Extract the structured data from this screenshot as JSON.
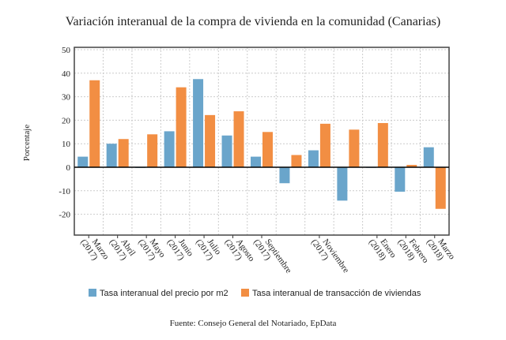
{
  "chart_data": {
    "type": "bar",
    "title": "Variación interanual de la compra de vivienda en la comunidad (Canarias)",
    "ylabel": "Porcentaje",
    "xlabel": "",
    "source": "Fuente: Consejo General del Notariado, EpData",
    "ylim": [
      -30,
      50
    ],
    "yticks": [
      -20,
      -10,
      0,
      10,
      20,
      30,
      40,
      50
    ],
    "grid": true,
    "legend": "bottom",
    "categories": [
      "Marzo (2017)",
      "Abril (2017)",
      "Mayo (2017)",
      "Junio (2017)",
      "Julio (2017)",
      "Agosto (2017)",
      "Septiembre (2017)",
      "",
      "Noviembre (2017)",
      "",
      "Enero (2018)",
      "Febrero (2018)",
      "Marzo (2018)"
    ],
    "series": [
      {
        "name": "Tasa interanual del precio por m2",
        "color": "#6aa5cb",
        "values": [
          4.5,
          10,
          -0.3,
          15.3,
          37.5,
          13.5,
          4.5,
          -6.8,
          7.2,
          -14.2,
          0,
          -10.4,
          8.5
        ]
      },
      {
        "name": "Tasa interanual de transacción de viviendas",
        "color": "#f28e43",
        "values": [
          37,
          12,
          14,
          34,
          22.2,
          23.8,
          15,
          5.2,
          18.5,
          16,
          18.8,
          1,
          -17.7
        ]
      }
    ]
  }
}
